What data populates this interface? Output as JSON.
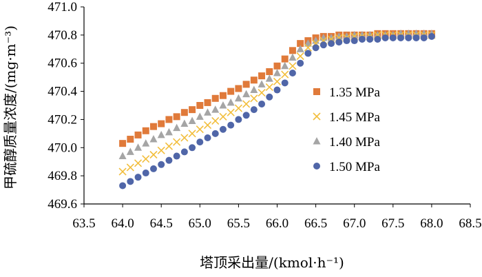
{
  "chart_data": {
    "type": "scatter",
    "title": "",
    "xlabel": "塔顶采出量/(kmol·h⁻¹)",
    "ylabel": "甲硫醇质量浓度/(mg·m⁻³)",
    "xlim": [
      63.5,
      68.5
    ],
    "ylim": [
      469.6,
      471.0
    ],
    "x_ticks": [
      "63.5",
      "64.0",
      "64.5",
      "65.0",
      "65.5",
      "66.0",
      "66.5",
      "67.0",
      "67.5",
      "68.0",
      "68.5"
    ],
    "y_ticks": [
      "469.6",
      "469.8",
      "470.0",
      "470.2",
      "470.4",
      "470.6",
      "470.8",
      "471.0"
    ],
    "grid": false,
    "legend_position": "right",
    "x": [
      64.0,
      64.1,
      64.2,
      64.3,
      64.4,
      64.5,
      64.6,
      64.7,
      64.8,
      64.9,
      65.0,
      65.1,
      65.2,
      65.3,
      65.4,
      65.5,
      65.6,
      65.7,
      65.8,
      65.9,
      66.0,
      66.1,
      66.2,
      66.3,
      66.4,
      66.5,
      66.6,
      66.7,
      66.8,
      66.9,
      67.0,
      67.1,
      67.2,
      67.3,
      67.4,
      67.5,
      67.6,
      67.7,
      67.8,
      67.9,
      68.0
    ],
    "series": [
      {
        "name": "1.35 MPa",
        "marker": "square",
        "color": "#E07A3A",
        "values": [
          470.03,
          470.06,
          470.09,
          470.12,
          470.15,
          470.17,
          470.2,
          470.22,
          470.25,
          470.27,
          470.3,
          470.32,
          470.35,
          470.37,
          470.4,
          470.42,
          470.45,
          470.48,
          470.51,
          470.54,
          470.58,
          470.63,
          470.69,
          470.74,
          470.76,
          470.78,
          470.79,
          470.79,
          470.8,
          470.8,
          470.8,
          470.8,
          470.8,
          470.81,
          470.81,
          470.81,
          470.81,
          470.81,
          470.81,
          470.81,
          470.81
        ]
      },
      {
        "name": "1.45 MPa",
        "marker": "cross",
        "color": "#F2BE3C",
        "values": [
          469.83,
          469.86,
          469.89,
          469.92,
          469.95,
          469.98,
          470.01,
          470.04,
          470.07,
          470.1,
          470.13,
          470.16,
          470.19,
          470.22,
          470.25,
          470.28,
          470.31,
          470.35,
          470.39,
          470.43,
          470.47,
          470.52,
          470.58,
          470.65,
          470.71,
          470.74,
          470.76,
          470.77,
          470.78,
          470.78,
          470.79,
          470.79,
          470.79,
          470.8,
          470.8,
          470.8,
          470.8,
          470.8,
          470.8,
          470.8,
          470.8
        ]
      },
      {
        "name": "1.40 MPa",
        "marker": "triangle",
        "color": "#A5A5A5",
        "values": [
          469.94,
          469.97,
          470.0,
          470.03,
          470.06,
          470.09,
          470.11,
          470.14,
          470.17,
          470.19,
          470.22,
          470.25,
          470.27,
          470.3,
          470.32,
          470.35,
          470.38,
          470.41,
          470.45,
          470.49,
          470.53,
          470.58,
          470.64,
          470.7,
          470.74,
          470.76,
          470.78,
          470.78,
          470.79,
          470.79,
          470.8,
          470.8,
          470.8,
          470.8,
          470.8,
          470.8,
          470.81,
          470.81,
          470.81,
          470.81,
          470.81
        ]
      },
      {
        "name": "1.50 MPa",
        "marker": "circle",
        "color": "#5066A8",
        "values": [
          469.73,
          469.76,
          469.79,
          469.82,
          469.85,
          469.88,
          469.91,
          469.94,
          469.97,
          470.0,
          470.04,
          470.07,
          470.1,
          470.13,
          470.16,
          470.2,
          470.23,
          470.27,
          470.31,
          470.36,
          470.41,
          470.46,
          470.53,
          470.6,
          470.67,
          470.71,
          470.73,
          470.74,
          470.75,
          470.76,
          470.76,
          470.77,
          470.77,
          470.77,
          470.78,
          470.78,
          470.78,
          470.78,
          470.78,
          470.78,
          470.79
        ]
      }
    ]
  }
}
